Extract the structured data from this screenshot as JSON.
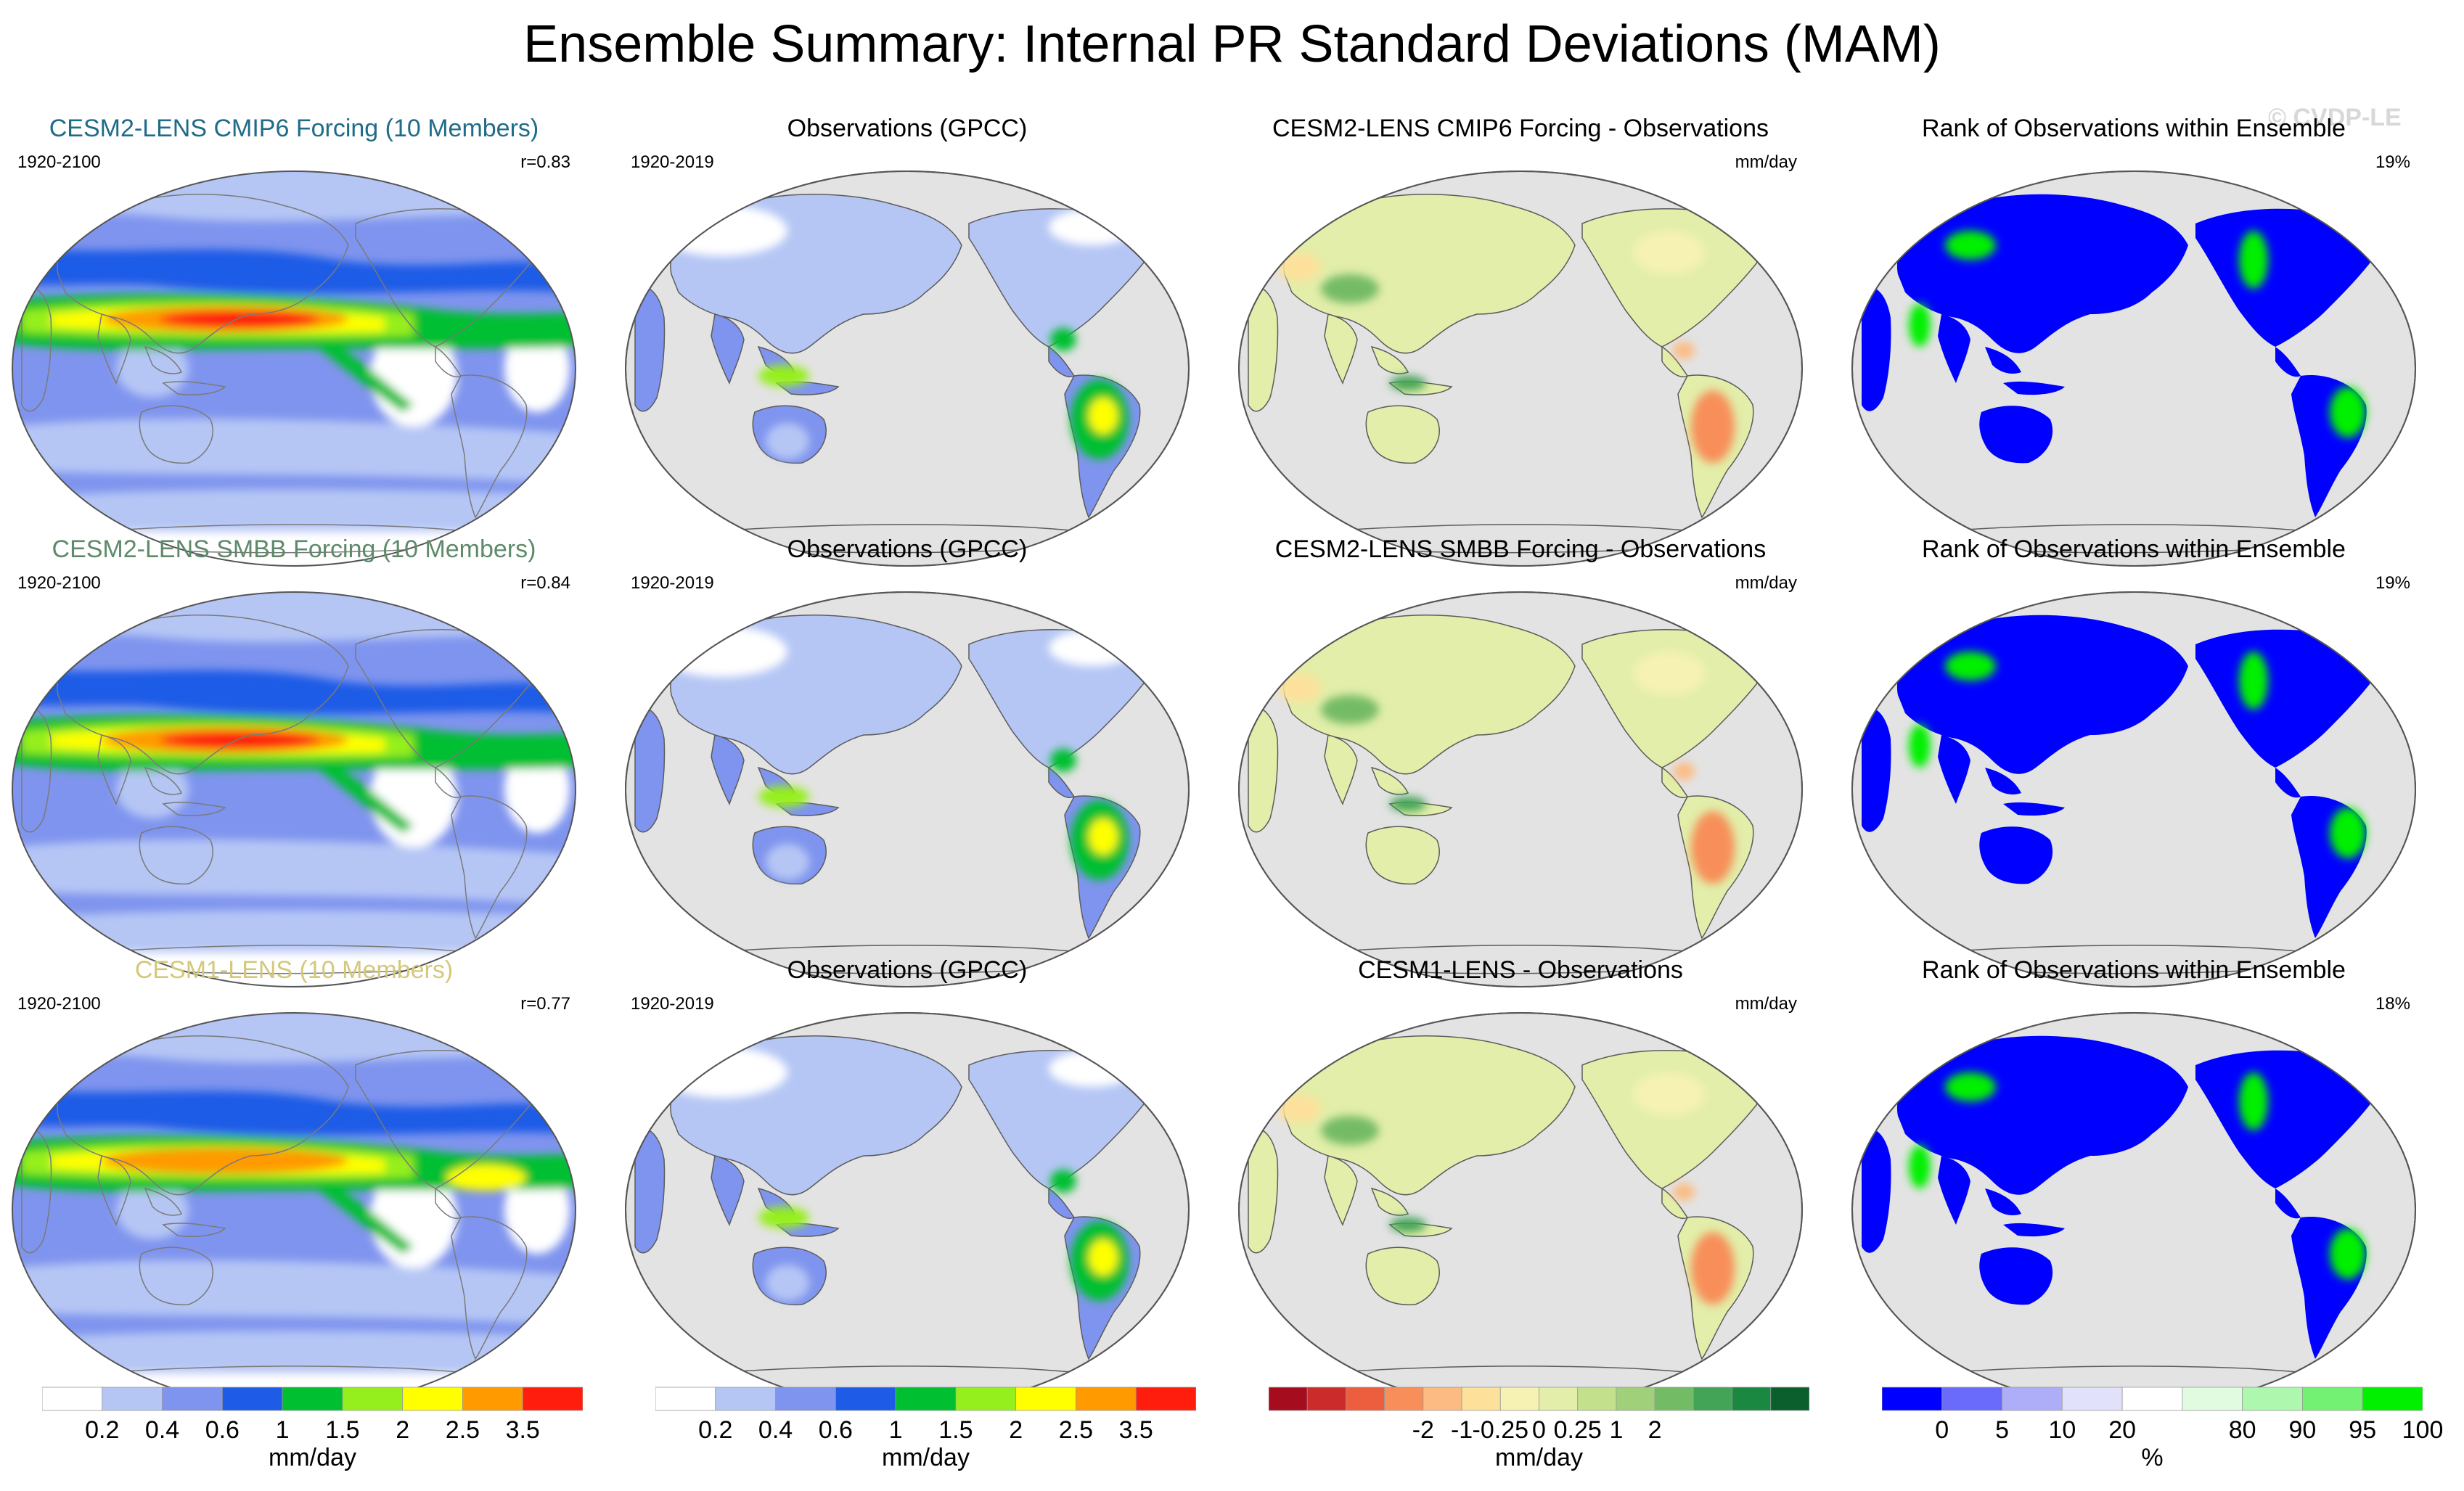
{
  "title": "Ensemble Summary: Internal PR Standard Deviations (MAM)",
  "copyright": "© CVDP-LE",
  "colors": {
    "pr_scale": [
      "#ffffff",
      "#b5c6f5",
      "#7f94ee",
      "#1e5be6",
      "#00bf30",
      "#95ef1d",
      "#ffff00",
      "#ff9a00",
      "#ff1e0d"
    ],
    "diff_scale": [
      "#a50d1f",
      "#cc2b2b",
      "#ec5e3e",
      "#f88f5a",
      "#fcbb82",
      "#fde19b",
      "#f6f2b3",
      "#e2eea9",
      "#c3e08d",
      "#a0d07a",
      "#74bb66",
      "#43a357",
      "#1b8842",
      "#0a5f2c"
    ],
    "rank_scale": [
      "#0000ff",
      "#6a6afb",
      "#aeaef8",
      "#e1e1fb",
      "#ffffff",
      "#e1fbe1",
      "#aef7ae",
      "#73f173",
      "#00f000"
    ],
    "land": "#e3e3e3"
  },
  "rows": [
    {
      "panels": [
        {
          "title": "CESM2-LENS CMIP6 Forcing (10 Members)",
          "title_color": "#1f6b8a",
          "left": "1920-2100",
          "right": "r=0.83",
          "kind": "model"
        },
        {
          "title": "Observations (GPCC)",
          "title_color": "#000000",
          "left": "1920-2019",
          "right": "",
          "kind": "obs"
        },
        {
          "title": "CESM2-LENS CMIP6 Forcing - Observations",
          "title_color": "#000000",
          "left": "",
          "right": "mm/day",
          "kind": "diff"
        },
        {
          "title": "Rank of Observations within Ensemble",
          "title_color": "#000000",
          "left": "",
          "right": "19%",
          "kind": "rank"
        }
      ]
    },
    {
      "panels": [
        {
          "title": "CESM2-LENS SMBB Forcing (10 Members)",
          "title_color": "#5e8a6a",
          "left": "1920-2100",
          "right": "r=0.84",
          "kind": "model"
        },
        {
          "title": "Observations (GPCC)",
          "title_color": "#000000",
          "left": "1920-2019",
          "right": "",
          "kind": "obs"
        },
        {
          "title": "CESM2-LENS SMBB Forcing - Observations",
          "title_color": "#000000",
          "left": "",
          "right": "mm/day",
          "kind": "diff"
        },
        {
          "title": "Rank of Observations within Ensemble",
          "title_color": "#000000",
          "left": "",
          "right": "19%",
          "kind": "rank"
        }
      ]
    },
    {
      "panels": [
        {
          "title": "CESM1-LENS (10 Members)",
          "title_color": "#d4c87a",
          "left": "1920-2100",
          "right": "r=0.77",
          "kind": "model"
        },
        {
          "title": "Observations (GPCC)",
          "title_color": "#000000",
          "left": "1920-2019",
          "right": "",
          "kind": "obs"
        },
        {
          "title": "CESM1-LENS - Observations",
          "title_color": "#000000",
          "left": "",
          "right": "mm/day",
          "kind": "diff"
        },
        {
          "title": "Rank of Observations within Ensemble",
          "title_color": "#000000",
          "left": "",
          "right": "18%",
          "kind": "rank"
        }
      ]
    }
  ],
  "colorbars": [
    {
      "labels": [
        "0.2",
        "0.4",
        "0.6",
        "1",
        "1.5",
        "2",
        "2.5",
        "3.5"
      ],
      "unit": "mm/day"
    },
    {
      "labels": [
        "0.2",
        "0.4",
        "0.6",
        "1",
        "1.5",
        "2",
        "2.5",
        "3.5"
      ],
      "unit": "mm/day"
    },
    {
      "labels": [
        "-2",
        "-1",
        "-0.25",
        "0",
        "0.25",
        "1",
        "2"
      ],
      "unit": "mm/day"
    },
    {
      "labels": [
        "0",
        "5",
        "10",
        "20",
        "80",
        "90",
        "95",
        "100"
      ],
      "unit": "%"
    }
  ],
  "chart_data": {
    "type": "heatmap",
    "title": "Ensemble Summary: Internal PR Standard Deviations (MAM)",
    "projection": "Robinson, centered on Pacific",
    "pr_levels_mm_per_day": [
      0.2,
      0.4,
      0.6,
      1,
      1.5,
      2,
      2.5,
      3.5
    ],
    "diff_levels_mm_per_day": [
      -2,
      -1,
      -0.25,
      0,
      0.25,
      1,
      2
    ],
    "rank_levels_percent": [
      0,
      5,
      10,
      20,
      80,
      90,
      95,
      100
    ],
    "pattern_correlations": [
      {
        "name": "CESM2-LENS CMIP6 Forcing (10 Members)",
        "r": 0.83,
        "rank_summary_percent": 19
      },
      {
        "name": "CESM2-LENS SMBB Forcing (10 Members)",
        "r": 0.84,
        "rank_summary_percent": 19
      },
      {
        "name": "CESM1-LENS (10 Members)",
        "r": 0.77,
        "rank_summary_percent": 18
      }
    ]
  }
}
